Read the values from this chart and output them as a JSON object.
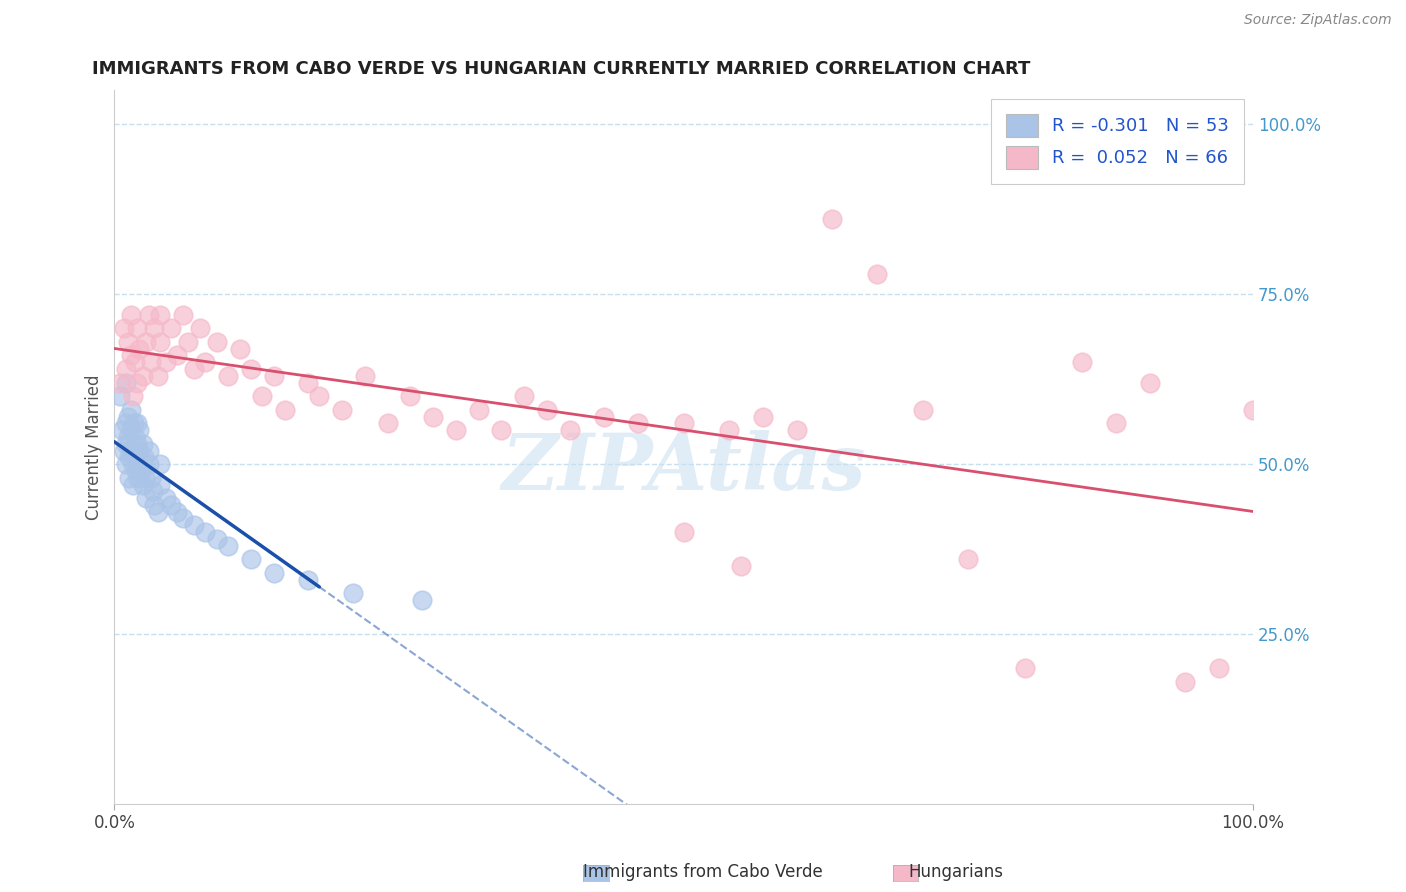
{
  "title": "IMMIGRANTS FROM CABO VERDE VS HUNGARIAN CURRENTLY MARRIED CORRELATION CHART",
  "source_text": "Source: ZipAtlas.com",
  "ylabel": "Currently Married",
  "blue_R": -0.301,
  "blue_N": 53,
  "pink_R": 0.052,
  "pink_N": 66,
  "blue_color": "#aac4e8",
  "pink_color": "#f5b8c8",
  "blue_line_color": "#1a4faa",
  "pink_line_color": "#d94f6e",
  "blue_scatter_x": [
    0.005,
    0.007,
    0.008,
    0.01,
    0.01,
    0.01,
    0.01,
    0.012,
    0.012,
    0.013,
    0.013,
    0.015,
    0.015,
    0.015,
    0.016,
    0.016,
    0.017,
    0.018,
    0.018,
    0.019,
    0.02,
    0.02,
    0.02,
    0.021,
    0.022,
    0.022,
    0.023,
    0.025,
    0.025,
    0.026,
    0.027,
    0.028,
    0.03,
    0.03,
    0.032,
    0.034,
    0.035,
    0.038,
    0.04,
    0.04,
    0.045,
    0.05,
    0.055,
    0.06,
    0.07,
    0.08,
    0.09,
    0.1,
    0.12,
    0.14,
    0.17,
    0.21,
    0.27
  ],
  "blue_scatter_y": [
    0.6,
    0.55,
    0.52,
    0.56,
    0.53,
    0.5,
    0.62,
    0.57,
    0.54,
    0.51,
    0.48,
    0.58,
    0.55,
    0.52,
    0.5,
    0.47,
    0.56,
    0.54,
    0.52,
    0.49,
    0.56,
    0.53,
    0.5,
    0.48,
    0.55,
    0.52,
    0.49,
    0.47,
    0.53,
    0.51,
    0.48,
    0.45,
    0.52,
    0.5,
    0.48,
    0.46,
    0.44,
    0.43,
    0.5,
    0.47,
    0.45,
    0.44,
    0.43,
    0.42,
    0.41,
    0.4,
    0.39,
    0.38,
    0.36,
    0.34,
    0.33,
    0.31,
    0.3
  ],
  "pink_scatter_x": [
    0.005,
    0.008,
    0.01,
    0.012,
    0.015,
    0.015,
    0.016,
    0.018,
    0.02,
    0.02,
    0.022,
    0.025,
    0.028,
    0.03,
    0.032,
    0.035,
    0.038,
    0.04,
    0.04,
    0.045,
    0.05,
    0.055,
    0.06,
    0.065,
    0.07,
    0.075,
    0.08,
    0.09,
    0.1,
    0.11,
    0.12,
    0.13,
    0.14,
    0.15,
    0.17,
    0.18,
    0.2,
    0.22,
    0.24,
    0.26,
    0.28,
    0.3,
    0.32,
    0.34,
    0.36,
    0.38,
    0.4,
    0.43,
    0.46,
    0.5,
    0.54,
    0.57,
    0.6,
    0.63,
    0.67,
    0.71,
    0.75,
    0.8,
    0.85,
    0.88,
    0.91,
    0.94,
    0.97,
    1.0,
    0.5,
    0.55
  ],
  "pink_scatter_y": [
    0.62,
    0.7,
    0.64,
    0.68,
    0.72,
    0.66,
    0.6,
    0.65,
    0.7,
    0.62,
    0.67,
    0.63,
    0.68,
    0.72,
    0.65,
    0.7,
    0.63,
    0.68,
    0.72,
    0.65,
    0.7,
    0.66,
    0.72,
    0.68,
    0.64,
    0.7,
    0.65,
    0.68,
    0.63,
    0.67,
    0.64,
    0.6,
    0.63,
    0.58,
    0.62,
    0.6,
    0.58,
    0.63,
    0.56,
    0.6,
    0.57,
    0.55,
    0.58,
    0.55,
    0.6,
    0.58,
    0.55,
    0.57,
    0.56,
    0.56,
    0.55,
    0.57,
    0.55,
    0.86,
    0.78,
    0.58,
    0.36,
    0.2,
    0.65,
    0.56,
    0.62,
    0.18,
    0.2,
    0.58,
    0.4,
    0.35
  ],
  "watermark": "ZIPAtlas",
  "legend_label1": "Immigrants from Cabo Verde",
  "legend_label2": "Hungarians"
}
